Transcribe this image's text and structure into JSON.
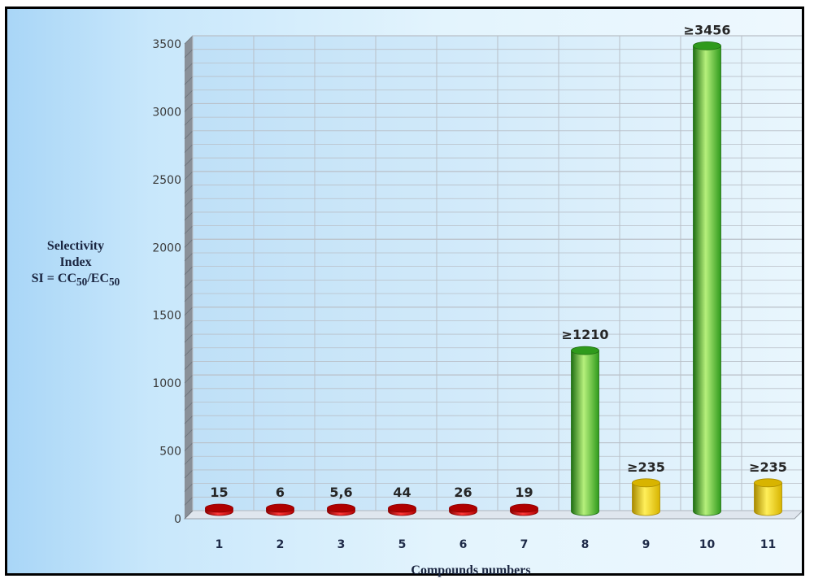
{
  "chart_data": {
    "type": "bar",
    "categories": [
      "1",
      "2",
      "3",
      "5",
      "6",
      "7",
      "8",
      "9",
      "10",
      "11"
    ],
    "values": [
      15,
      6,
      5.6,
      44,
      26,
      19,
      1210,
      235,
      3456,
      235
    ],
    "value_labels": [
      "15",
      "6",
      "5,6",
      "44",
      "26",
      "19",
      "≥1210",
      "≥235",
      "≥3456",
      "≥235"
    ],
    "bar_colors": [
      "red",
      "red",
      "red",
      "red",
      "red",
      "red",
      "green",
      "yellow",
      "green",
      "yellow"
    ],
    "title": "",
    "xlabel": "Compounds numbers",
    "ylabel_lines": [
      "Selectivity",
      "Index"
    ],
    "ylabel_formula": {
      "prefix": "SI = CC",
      "sub1": "50",
      "mid": "/EC",
      "sub2": "50"
    },
    "ylim": [
      0,
      3500
    ],
    "yticks": [
      0,
      500,
      1000,
      1500,
      2000,
      2500,
      3000,
      3500
    ],
    "minor_step": 100,
    "grid": true,
    "legend": "none"
  },
  "colors": {
    "red": [
      "#8a0000",
      "#ff3a3a",
      "#b00000"
    ],
    "green": [
      "#1f6e12",
      "#b6f07c",
      "#2f9a1c"
    ],
    "yellow": [
      "#a88a00",
      "#ffef5a",
      "#d8b400"
    ],
    "grid": "#b9bfc7",
    "axis": "#9aa0a8"
  }
}
